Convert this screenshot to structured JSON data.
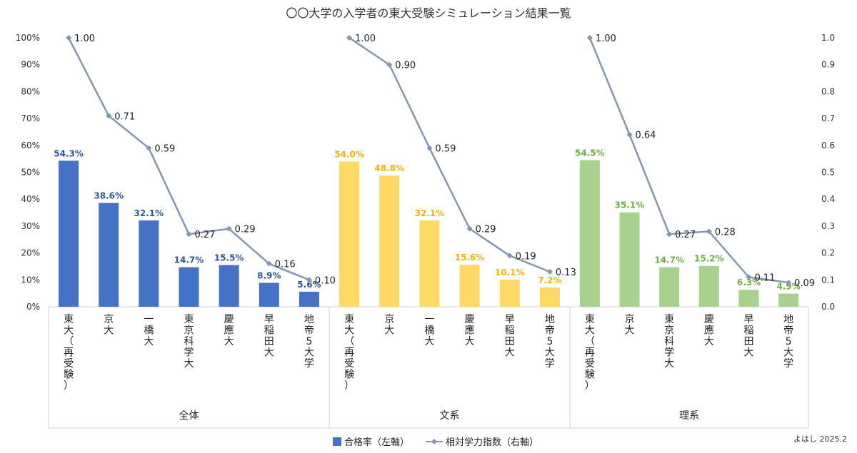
{
  "chart_data": {
    "type": "bar+line",
    "title": "〇〇大学の入学者の東大受験シミュレーション結果一覧",
    "groups": [
      {
        "name": "全体",
        "bar_color": "#4472C4",
        "label_color": "#2F5597"
      },
      {
        "name": "文系",
        "bar_color": "#FFD966",
        "label_color": "#F2B400"
      },
      {
        "name": "理系",
        "bar_color": "#A9D18E",
        "label_color": "#70AD47"
      }
    ],
    "categories": [
      "東大（再受験）",
      "京大",
      "一橋大",
      "東京科学大",
      "慶應大",
      "早稲田大",
      "地帝5大学"
    ],
    "series": [
      {
        "name": "合格率（左軸）",
        "type": "bar",
        "axis": "left",
        "data": [
          [
            54.3,
            38.6,
            32.1,
            14.7,
            15.5,
            8.9,
            5.6
          ],
          [
            54.0,
            48.8,
            32.1,
            15.6,
            10.1,
            7.2
          ],
          [
            54.5,
            35.1,
            14.7,
            15.2,
            6.3,
            4.9
          ]
        ],
        "labels": [
          [
            "54.3%",
            "38.6%",
            "32.1%",
            "14.7%",
            "15.5%",
            "8.9%",
            "5.6%"
          ],
          [
            "54.0%",
            "48.8%",
            "32.1%",
            "15.6%",
            "10.1%",
            "7.2%"
          ],
          [
            "54.5%",
            "35.1%",
            "14.7%",
            "15.2%",
            "6.3%",
            "4.9%"
          ]
        ]
      },
      {
        "name": "相対学力指数（右軸）",
        "type": "line",
        "axis": "right",
        "color": "#8497B0",
        "data": [
          [
            1.0,
            0.71,
            0.59,
            0.27,
            0.29,
            0.16,
            0.1
          ],
          [
            1.0,
            0.9,
            0.59,
            0.29,
            0.19,
            0.13
          ],
          [
            1.0,
            0.64,
            0.27,
            0.28,
            0.11,
            0.09
          ]
        ],
        "labels": [
          [
            "1.00",
            "0.71",
            "0.59",
            "0.27",
            "0.29",
            "0.16",
            "0.10"
          ],
          [
            "1.00",
            "0.90",
            "0.59",
            "0.29",
            "0.19",
            "0.13"
          ],
          [
            "1.00",
            "0.64",
            "0.27",
            "0.28",
            "0.11",
            "0.09"
          ]
        ]
      }
    ],
    "group_categories": [
      [
        "東大（再受験）",
        "京大",
        "一橋大",
        "東京科学大",
        "慶應大",
        "早稲田大",
        "地帝5大学"
      ],
      [
        "東大（再受験）",
        "京大",
        "一橋大",
        "慶應大",
        "早稲田大",
        "地帝5大学"
      ],
      [
        "東大（再受験）",
        "京大",
        "東京科学大",
        "慶應大",
        "早稲田大",
        "地帝5大学"
      ]
    ],
    "left_axis": {
      "min": 0,
      "max": 100,
      "step": 10,
      "ticks": [
        "0%",
        "10%",
        "20%",
        "30%",
        "40%",
        "50%",
        "60%",
        "70%",
        "80%",
        "90%",
        "100%"
      ]
    },
    "right_axis": {
      "min": 0,
      "max": 1.0,
      "step": 0.1,
      "ticks": [
        "0.0",
        "0.1",
        "0.2",
        "0.3",
        "0.4",
        "0.5",
        "0.6",
        "0.7",
        "0.8",
        "0.9",
        "1.0"
      ]
    },
    "legend": {
      "position": "bottom",
      "items": [
        "合格率（左軸）",
        "相対学力指数（右軸）"
      ]
    },
    "grid": false
  },
  "credit": "よはし 2025.2"
}
